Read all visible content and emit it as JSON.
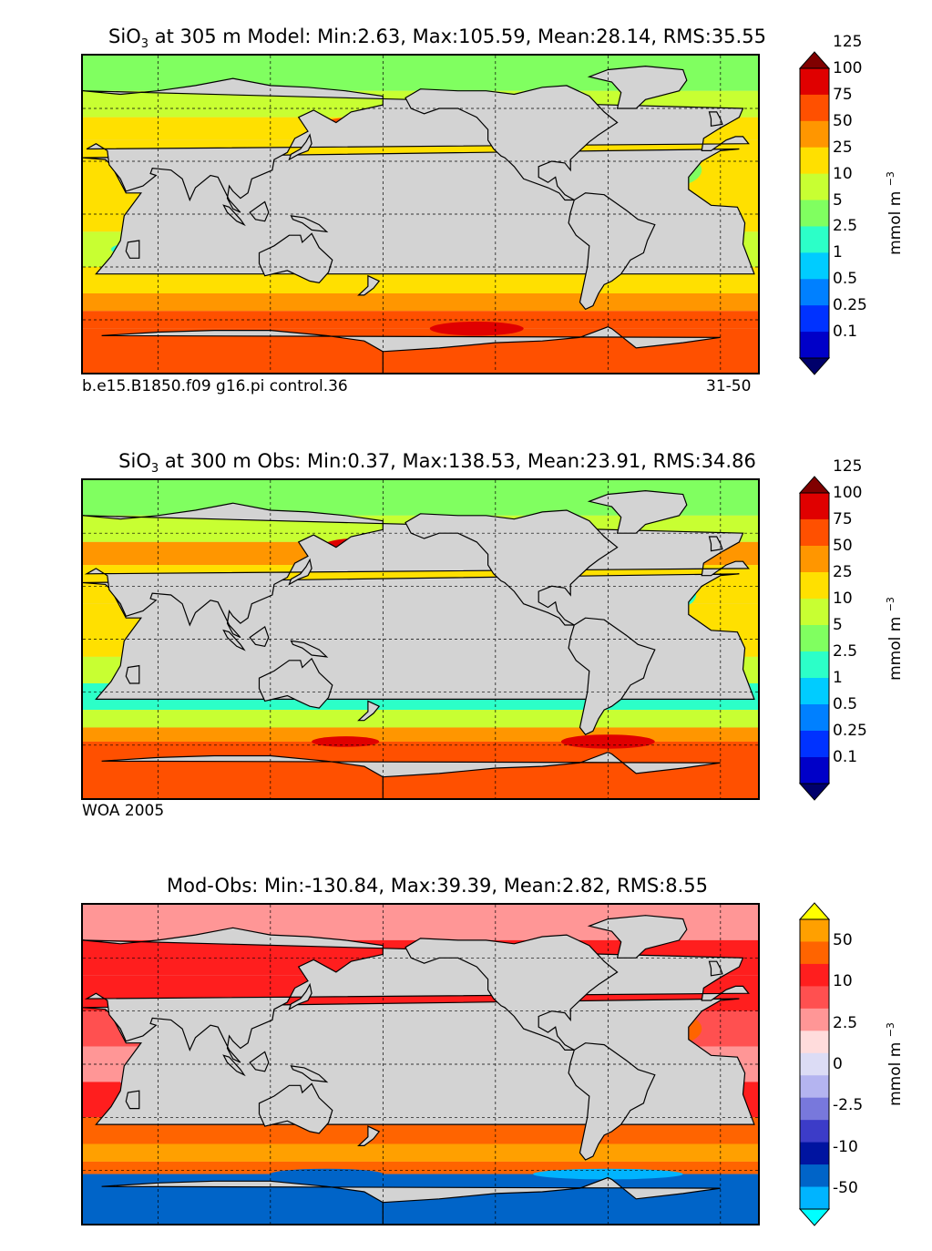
{
  "panels": [
    {
      "title_prefix": "SiO",
      "title_sub": "3",
      "title_rest": " at 305 m Model: Min:2.63, Max:105.59, Mean:28.14, RMS:35.55",
      "caption_left": "b.e15.B1850.f09 g16.pi control.36",
      "caption_right": "31-50"
    },
    {
      "title_prefix": "SiO",
      "title_sub": "3",
      "title_rest": " at 300 m Obs: Min:0.37, Max:138.53, Mean:23.91, RMS:34.86",
      "caption_left": "WOA 2005",
      "caption_right": ""
    },
    {
      "title_prefix": "",
      "title_sub": "",
      "title_rest": "Mod-Obs: Min:-130.84, Max:39.39, Mean:2.82, RMS:8.55",
      "caption_left": "",
      "caption_right": ""
    }
  ],
  "colorbar_units": "mmol m",
  "colorbar_units_sup": "−3",
  "chart_data": [
    {
      "type": "heatmap",
      "title": "SiO3 at 305 m Model: Min:2.63, Max:105.59, Mean:28.14, RMS:35.55",
      "units": "mmol m^-3",
      "levels": [
        "0.1",
        "0.25",
        "0.5",
        "1",
        "2.5",
        "5",
        "10",
        "25",
        "50",
        "75",
        "100",
        "125"
      ],
      "colors": [
        "#00006a",
        "#0000c8",
        "#0032ff",
        "#0080ff",
        "#00ccff",
        "#2cffc8",
        "#80ff60",
        "#c8ff32",
        "#ffe000",
        "#ff9600",
        "#ff5000",
        "#e00000",
        "#800000"
      ],
      "extend": "both",
      "stats": {
        "min": 2.63,
        "max": 105.59,
        "mean": 28.14,
        "rms": 35.55
      },
      "depth_m": 305,
      "run": "b.e15.B1850.f09 g16.pi control.36",
      "years": "31-50"
    },
    {
      "type": "heatmap",
      "title": "SiO3 at 300 m Obs: Min:0.37, Max:138.53, Mean:23.91, RMS:34.86",
      "units": "mmol m^-3",
      "levels": [
        "0.1",
        "0.25",
        "0.5",
        "1",
        "2.5",
        "5",
        "10",
        "25",
        "50",
        "75",
        "100",
        "125"
      ],
      "colors": [
        "#00006a",
        "#0000c8",
        "#0032ff",
        "#0080ff",
        "#00ccff",
        "#2cffc8",
        "#80ff60",
        "#c8ff32",
        "#ffe000",
        "#ff9600",
        "#ff5000",
        "#e00000",
        "#800000"
      ],
      "extend": "both",
      "stats": {
        "min": 0.37,
        "max": 138.53,
        "mean": 23.91,
        "rms": 34.86
      },
      "depth_m": 300,
      "source": "WOA 2005"
    },
    {
      "type": "heatmap",
      "title": "Mod-Obs: Min:-130.84, Max:39.39, Mean:2.82, RMS:8.55",
      "units": "mmol m^-3",
      "tick_labels": [
        "-50",
        "-10",
        "-2.5",
        "0",
        "2.5",
        "10",
        "50"
      ],
      "colors": [
        "#00ffff",
        "#00b4ff",
        "#0064c8",
        "#0014a0",
        "#3c3cc8",
        "#7878dc",
        "#b4b4f0",
        "#dcdcf5",
        "#ffdcdc",
        "#ff9696",
        "#ff5050",
        "#ff1e1e",
        "#ff6400",
        "#ffa000",
        "#ffff00"
      ],
      "extend": "both",
      "stats": {
        "min": -130.84,
        "max": 39.39,
        "mean": 2.82,
        "rms": 8.55
      }
    }
  ]
}
